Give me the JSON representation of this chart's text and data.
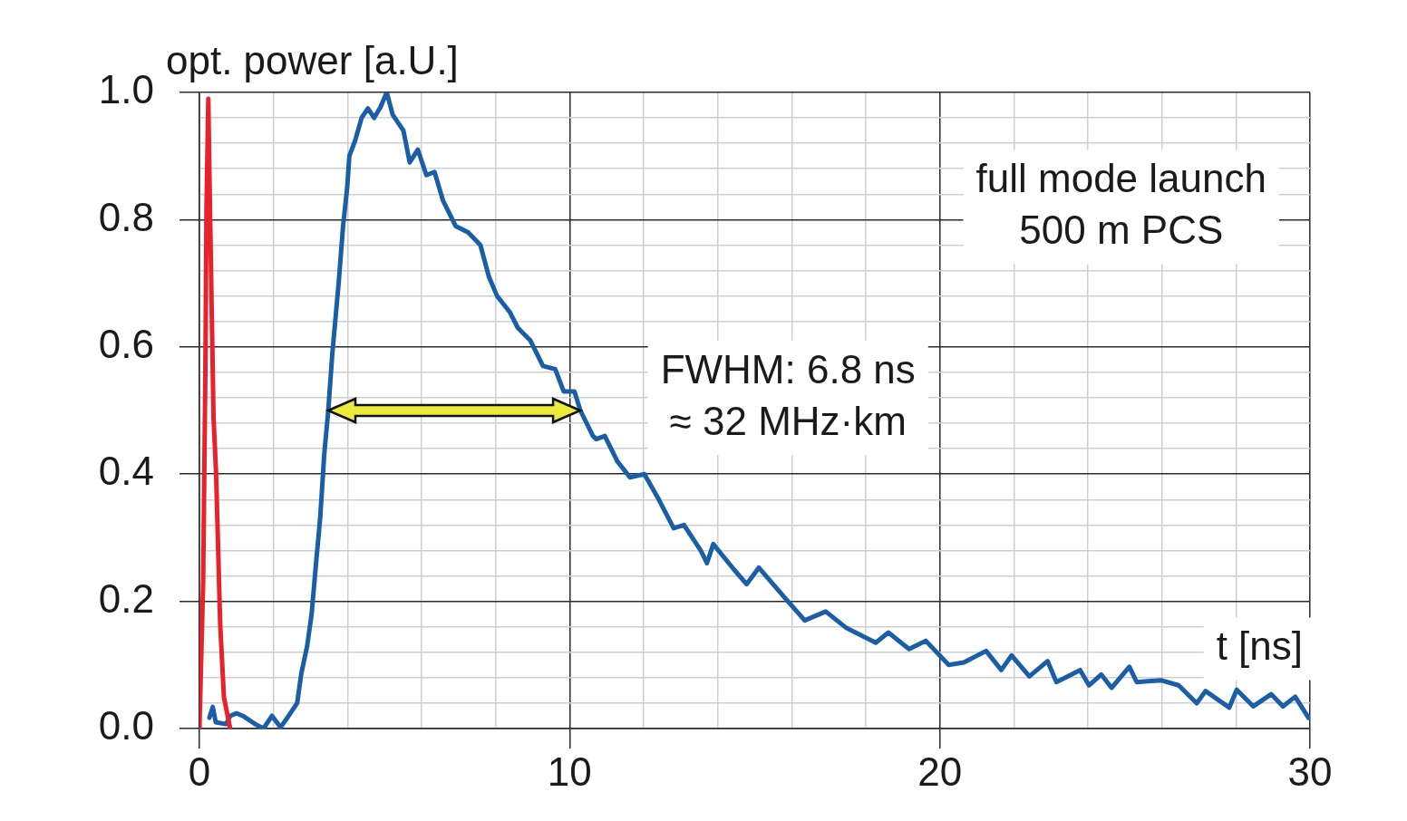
{
  "chart_data": {
    "type": "line",
    "xlabel": "t [ns]",
    "ylabel": "opt. power [a.U.]",
    "annotations": [
      "full mode launch\n500 m PCS",
      "FWHM: 6.8 ns\n≈ 32 MHz·km"
    ],
    "xlim": [
      0,
      30
    ],
    "ylim": [
      0,
      1.0
    ],
    "xticks": [
      0,
      {
        "value": 2,
        "label": null
      },
      {
        "value": 4,
        "label": null
      },
      {
        "value": 6,
        "label": null
      },
      {
        "value": 8,
        "label": null
      },
      10,
      {
        "value": 12,
        "label": null
      },
      {
        "value": 14,
        "label": null
      },
      {
        "value": 16,
        "label": null
      },
      {
        "value": 18,
        "label": null
      },
      20,
      {
        "value": 22,
        "label": null
      },
      {
        "value": 24,
        "label": null
      },
      {
        "value": 26,
        "label": null
      },
      {
        "value": 28,
        "label": null
      },
      30
    ],
    "yticks": [
      {
        "value": 0,
        "label": "0.0"
      },
      {
        "value": 0.04,
        "label": null
      },
      {
        "value": 0.08,
        "label": null
      },
      {
        "value": 0.12,
        "label": null
      },
      {
        "value": 0.16,
        "label": null
      },
      0.2,
      {
        "value": 0.24,
        "label": null
      },
      {
        "value": 0.28,
        "label": null
      },
      {
        "value": 0.32,
        "label": null
      },
      {
        "value": 0.36,
        "label": null
      },
      0.4,
      {
        "value": 0.44,
        "label": null
      },
      {
        "value": 0.48,
        "label": null
      },
      {
        "value": 0.52,
        "label": null
      },
      {
        "value": 0.56,
        "label": null
      },
      0.6,
      {
        "value": 0.64,
        "label": null
      },
      {
        "value": 0.68,
        "label": null
      },
      {
        "value": 0.72,
        "label": null
      },
      {
        "value": 0.76,
        "label": null
      },
      0.8,
      {
        "value": 0.84,
        "label": null
      },
      {
        "value": 0.88,
        "label": null
      },
      {
        "value": 0.92,
        "label": null
      },
      {
        "value": 0.96,
        "label": null
      },
      {
        "value": 1.0,
        "label": "1.0"
      }
    ],
    "grid": true,
    "legend": false,
    "marker": "none",
    "line_style": "solid",
    "series": [
      {
        "color": "#e8222a",
        "x": [
          0,
          0.1,
          0.16,
          0.19,
          0.24,
          0.27,
          0.38,
          0.45,
          0.56,
          0.66,
          0.83
        ],
        "values": [
          0,
          0.23,
          0.56,
          0.82,
          0.99,
          0.87,
          0.49,
          0.4,
          0.165,
          0.05,
          0
        ]
      },
      {
        "color": "#1a5ea8",
        "x": [
          0.27,
          0.36,
          0.44,
          0.72,
          0.83,
          1.0,
          1.17,
          1.51,
          1.73,
          1.96,
          2.19,
          2.41,
          2.64,
          2.75,
          2.91,
          3.03,
          3.15,
          3.26,
          3.37,
          3.48,
          3.59,
          3.76,
          3.88,
          3.99,
          4.05,
          4.21,
          4.38,
          4.55,
          4.72,
          4.89,
          5.06,
          5.22,
          5.51,
          5.68,
          5.9,
          6.13,
          6.35,
          6.58,
          6.92,
          7.26,
          7.59,
          7.82,
          8.04,
          8.38,
          8.6,
          8.94,
          9.28,
          9.61,
          9.84,
          10.13,
          10.29,
          10.63,
          10.72,
          10.95,
          11.29,
          11.63,
          12.02,
          12.41,
          12.81,
          13.09,
          13.54,
          13.71,
          13.88,
          14.44,
          14.78,
          15.11,
          15.79,
          16.35,
          16.92,
          17.48,
          18.27,
          18.61,
          19.17,
          19.62,
          20.24,
          20.65,
          21.25,
          21.66,
          21.94,
          22.42,
          22.91,
          23.15,
          23.79,
          24.03,
          24.36,
          24.64,
          25.12,
          25.32,
          25.97,
          26.45,
          26.94,
          27.18,
          27.82,
          28.02,
          28.47,
          28.95,
          29.27,
          29.6,
          29.96
        ],
        "values": [
          0.017,
          0.034,
          0.01,
          0.007,
          0.02,
          0.024,
          0.02,
          0.007,
          0,
          0.02,
          0.002,
          0.02,
          0.04,
          0.086,
          0.13,
          0.18,
          0.26,
          0.33,
          0.43,
          0.5,
          0.59,
          0.7,
          0.79,
          0.85,
          0.9,
          0.925,
          0.96,
          0.975,
          0.96,
          0.977,
          1.0,
          0.965,
          0.94,
          0.89,
          0.91,
          0.87,
          0.875,
          0.83,
          0.79,
          0.78,
          0.76,
          0.71,
          0.68,
          0.655,
          0.63,
          0.61,
          0.57,
          0.565,
          0.53,
          0.53,
          0.5,
          0.46,
          0.455,
          0.46,
          0.42,
          0.395,
          0.4,
          0.36,
          0.315,
          0.32,
          0.28,
          0.26,
          0.29,
          0.25,
          0.227,
          0.253,
          0.207,
          0.17,
          0.184,
          0.158,
          0.135,
          0.151,
          0.125,
          0.138,
          0.1,
          0.104,
          0.122,
          0.092,
          0.115,
          0.082,
          0.106,
          0.073,
          0.092,
          0.068,
          0.085,
          0.064,
          0.097,
          0.073,
          0.076,
          0.068,
          0.04,
          0.059,
          0.033,
          0.061,
          0.035,
          0.054,
          0.035,
          0.05,
          0.017
        ]
      }
    ]
  }
}
